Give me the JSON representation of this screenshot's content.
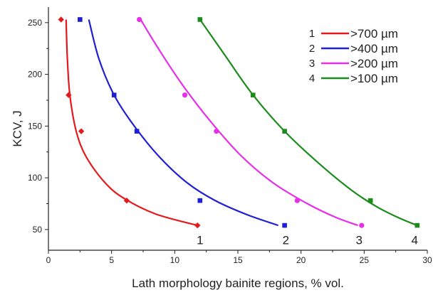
{
  "chart_data": {
    "type": "scatter",
    "title": "",
    "xlabel": "Lath morphology bainite regions, % vol.",
    "ylabel": "KCV, J",
    "xlim": [
      0,
      30
    ],
    "ylim": [
      30,
      265
    ],
    "xticks": [
      0,
      5,
      10,
      15,
      20,
      25,
      30
    ],
    "yticks": [
      50,
      100,
      150,
      200,
      250
    ],
    "grid": false,
    "legend_position": "top-right",
    "series": [
      {
        "name": ">700 µm",
        "id": "1",
        "color": "#e5191b",
        "marker": "diamond",
        "points": [
          [
            1.0,
            253
          ],
          [
            1.6,
            180
          ],
          [
            2.6,
            145
          ],
          [
            6.2,
            78
          ],
          [
            11.8,
            54
          ]
        ],
        "fit": [
          [
            1.4,
            253
          ],
          [
            1.5,
            215
          ],
          [
            1.7,
            180
          ],
          [
            2.2,
            145
          ],
          [
            3.0,
            120
          ],
          [
            4.5,
            95
          ],
          [
            6.0,
            80
          ],
          [
            8.5,
            65
          ],
          [
            11.8,
            54
          ]
        ]
      },
      {
        "name": ">400 µm",
        "id": "2",
        "color": "#1f1fd6",
        "marker": "square",
        "points": [
          [
            2.5,
            253
          ],
          [
            5.2,
            180
          ],
          [
            7.0,
            145
          ],
          [
            12.0,
            78
          ],
          [
            18.7,
            54
          ]
        ],
        "fit": [
          [
            3.2,
            253
          ],
          [
            4.0,
            215
          ],
          [
            5.2,
            180
          ],
          [
            6.8,
            150
          ],
          [
            8.8,
            120
          ],
          [
            11.0,
            95
          ],
          [
            13.2,
            78
          ],
          [
            15.8,
            64
          ],
          [
            18.2,
            54
          ]
        ]
      },
      {
        "name": ">200 µm",
        "id": "3",
        "color": "#e62fe6",
        "marker": "circle",
        "points": [
          [
            7.2,
            253
          ],
          [
            10.8,
            180
          ],
          [
            13.3,
            145
          ],
          [
            19.7,
            78
          ],
          [
            24.8,
            54
          ]
        ],
        "fit": [
          [
            7.3,
            253
          ],
          [
            8.7,
            225
          ],
          [
            10.6,
            190
          ],
          [
            12.8,
            155
          ],
          [
            15.2,
            122
          ],
          [
            17.8,
            95
          ],
          [
            20.5,
            75
          ],
          [
            22.7,
            62
          ],
          [
            24.5,
            54
          ]
        ]
      },
      {
        "name": ">100 µm",
        "id": "4",
        "color": "#1b8c1b",
        "marker": "square",
        "points": [
          [
            12.0,
            253
          ],
          [
            16.2,
            180
          ],
          [
            18.7,
            145
          ],
          [
            25.5,
            78
          ],
          [
            29.2,
            54
          ]
        ],
        "fit": [
          [
            12.0,
            253
          ],
          [
            14.0,
            218
          ],
          [
            16.2,
            180
          ],
          [
            18.7,
            145
          ],
          [
            21.5,
            113
          ],
          [
            24.0,
            88
          ],
          [
            26.0,
            72
          ],
          [
            27.8,
            61
          ],
          [
            29.2,
            54
          ]
        ]
      }
    ],
    "curve_labels": [
      {
        "text": "1",
        "x": 12.0,
        "y": 40
      },
      {
        "text": "2",
        "x": 18.8,
        "y": 40
      },
      {
        "text": "3",
        "x": 24.6,
        "y": 40
      },
      {
        "text": "4",
        "x": 29.0,
        "y": 40
      }
    ]
  }
}
